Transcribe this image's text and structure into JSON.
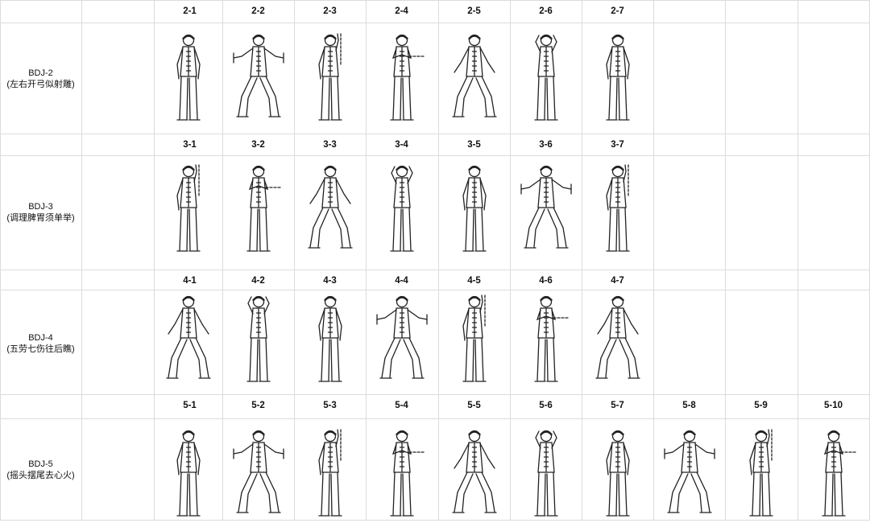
{
  "rows": [
    {
      "code": "BDJ-2",
      "name": "(左右开弓似射雕)",
      "steps": [
        "2-1",
        "2-2",
        "2-3",
        "2-4",
        "2-5",
        "2-6",
        "2-7"
      ]
    },
    {
      "code": "BDJ-3",
      "name": "(调理脾胃须单举)",
      "steps": [
        "3-1",
        "3-2",
        "3-3",
        "3-4",
        "3-5",
        "3-6",
        "3-7"
      ]
    },
    {
      "code": "BDJ-4",
      "name": "(五劳七伤往后瞧)",
      "steps": [
        "4-1",
        "4-2",
        "4-3",
        "4-4",
        "4-5",
        "4-6",
        "4-7"
      ]
    },
    {
      "code": "BDJ-5",
      "name": "(摇头摆尾去心火)",
      "steps": [
        "5-1",
        "5-2",
        "5-3",
        "5-4",
        "5-5",
        "5-6",
        "5-7",
        "5-8",
        "5-9",
        "5-10"
      ]
    }
  ]
}
